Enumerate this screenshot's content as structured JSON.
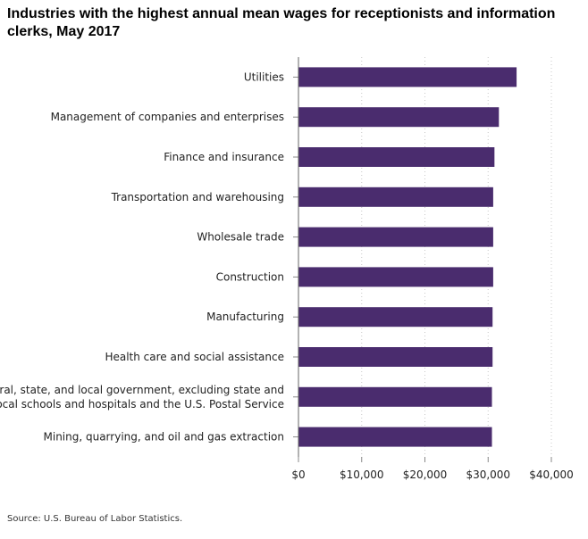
{
  "chart_data": {
    "type": "bar",
    "orientation": "horizontal",
    "title": "Industries with the highest annual mean wages for receptionists and information clerks, May 2017",
    "source": "Source: U.S. Bureau of Labor Statistics.",
    "categories": [
      [
        "Utilities"
      ],
      [
        "Management of companies and enterprises"
      ],
      [
        "Finance and insurance"
      ],
      [
        "Transportation and warehousing"
      ],
      [
        "Wholesale trade"
      ],
      [
        "Construction"
      ],
      [
        "Manufacturing"
      ],
      [
        "Health care and social assistance"
      ],
      [
        "Federal, state, and local government, excluding state and",
        "local schools and hospitals and the U.S. Postal Service"
      ],
      [
        "Mining, quarrying, and oil and gas extraction"
      ]
    ],
    "values": [
      34500,
      31700,
      31000,
      30800,
      30800,
      30800,
      30700,
      30700,
      30600,
      30600
    ],
    "xlim": [
      0,
      40000
    ],
    "xticks": [
      0,
      10000,
      20000,
      30000,
      40000
    ],
    "xtick_labels": [
      "$0",
      "$10,000",
      "$20,000",
      "$30,000",
      "$40,000"
    ],
    "grid": "vertical dotted",
    "bar_color": "#4a2c6e"
  }
}
